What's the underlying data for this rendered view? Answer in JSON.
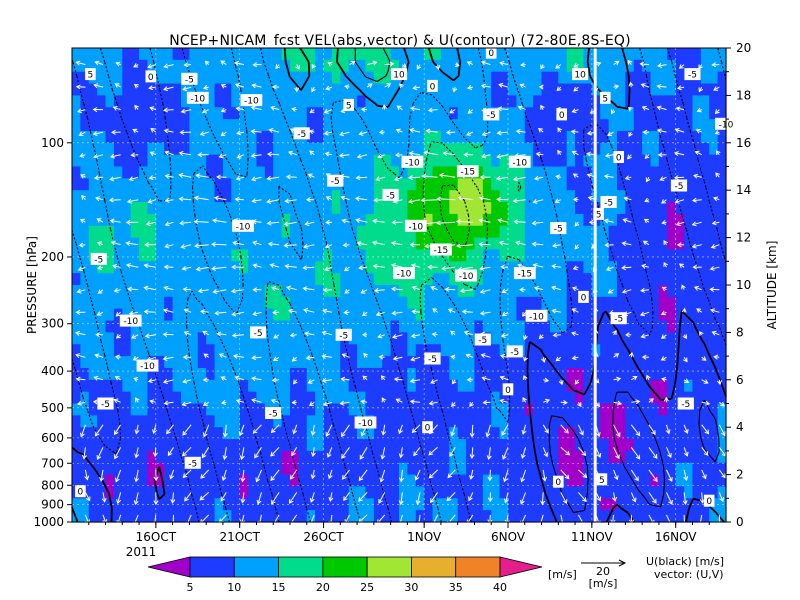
{
  "chart_data": {
    "type": "heatmap",
    "title": "NCEP+NICAM_fcst VEL(abs,vector) & U(contour)   (72-80E,8S-EQ)",
    "ylabel_left": "PRESSURE [hPa]",
    "ylabel_right": "ALTITUDE [km]",
    "pressure_ticks": [
      "100",
      "200",
      "300",
      "400",
      "500",
      "600",
      "700",
      "800",
      "900",
      "1000"
    ],
    "pressure_values": [
      100,
      200,
      300,
      400,
      500,
      600,
      700,
      800,
      900,
      1000
    ],
    "altitude_ticks": [
      "0",
      "2",
      "4",
      "6",
      "8",
      "10",
      "12",
      "14",
      "16",
      "18",
      "20"
    ],
    "altitude_values": [
      0,
      2,
      4,
      6,
      8,
      10,
      12,
      14,
      16,
      18,
      20
    ],
    "date_ticks": [
      "16OCT",
      "21OCT",
      "26OCT",
      "1NOV",
      "6NOV",
      "11NOV",
      "16NOV"
    ],
    "date_positions_days": [
      5,
      10,
      15,
      21,
      26,
      31,
      36
    ],
    "year_label": "2011",
    "time_range_days": [
      0,
      39
    ],
    "forecast_start_label": "2011-11-11",
    "colorbar": {
      "levels": [
        "5",
        "10",
        "15",
        "20",
        "25",
        "30",
        "35",
        "40"
      ],
      "colors": [
        "#a100c8",
        "#1e3cff",
        "#00a0ff",
        "#00dc8c",
        "#00c800",
        "#a0e632",
        "#e6af2d",
        "#f08228",
        "#e61e8c"
      ],
      "unit": "[m/s]"
    },
    "vector_ref": {
      "value": "20",
      "unit": "[m/s]"
    },
    "legend_lines": [
      "U(black) [m/s]",
      "vector: (U,V)"
    ],
    "contour_labels": [
      {
        "text": "5",
        "day": 16.5,
        "km": 17.6
      },
      {
        "text": "10",
        "day": 19.5,
        "km": 18.9
      },
      {
        "text": "0",
        "day": 25.0,
        "km": 19.8
      },
      {
        "text": "5",
        "day": 1.1,
        "km": 18.9
      },
      {
        "text": "0",
        "day": 4.7,
        "km": 18.8
      },
      {
        "text": "-5",
        "day": 7.0,
        "km": 18.7
      },
      {
        "text": "-10",
        "day": 7.5,
        "km": 17.9
      },
      {
        "text": "-10",
        "day": 10.7,
        "km": 17.8
      },
      {
        "text": "-5",
        "day": 13.7,
        "km": 16.4
      },
      {
        "text": "0",
        "day": 21.5,
        "km": 18.4
      },
      {
        "text": "-5",
        "day": 25.0,
        "km": 17.2
      },
      {
        "text": "10",
        "day": 30.3,
        "km": 18.9
      },
      {
        "text": "5",
        "day": 31.8,
        "km": 17.9
      },
      {
        "text": "0",
        "day": 29.2,
        "km": 17.2
      },
      {
        "text": "0",
        "day": 32.6,
        "km": 15.4
      },
      {
        "text": "-5",
        "day": 37.0,
        "km": 18.9
      },
      {
        "text": "-10",
        "day": 39.0,
        "km": 16.8
      },
      {
        "text": "-10",
        "day": 20.3,
        "km": 15.2
      },
      {
        "text": "-15",
        "day": 23.6,
        "km": 14.8
      },
      {
        "text": "-10",
        "day": 26.7,
        "km": 15.2
      },
      {
        "text": "-5",
        "day": 15.7,
        "km": 14.4
      },
      {
        "text": "-5",
        "day": 19.0,
        "km": 13.8
      },
      {
        "text": "-5",
        "day": 32.0,
        "km": 13.5
      },
      {
        "text": "-5",
        "day": 36.2,
        "km": 14.2
      },
      {
        "text": "5",
        "day": 31.4,
        "km": 13.0
      },
      {
        "text": "-10",
        "day": 20.5,
        "km": 12.5
      },
      {
        "text": "-10",
        "day": 10.2,
        "km": 12.5
      },
      {
        "text": "-15",
        "day": 22.0,
        "km": 11.5
      },
      {
        "text": "-5",
        "day": 29.0,
        "km": 12.4
      },
      {
        "text": "-5",
        "day": 1.6,
        "km": 11.1
      },
      {
        "text": "-10",
        "day": 19.8,
        "km": 10.5
      },
      {
        "text": "-10",
        "day": 23.5,
        "km": 10.4
      },
      {
        "text": "-15",
        "day": 27.0,
        "km": 10.5
      },
      {
        "text": "0",
        "day": 30.5,
        "km": 9.5
      },
      {
        "text": "-10",
        "day": 27.7,
        "km": 8.7
      },
      {
        "text": "-10",
        "day": 3.5,
        "km": 8.5
      },
      {
        "text": "-5",
        "day": 11.1,
        "km": 8.0
      },
      {
        "text": "-5",
        "day": 16.2,
        "km": 7.9
      },
      {
        "text": "-5",
        "day": 32.6,
        "km": 8.6
      },
      {
        "text": "-5",
        "day": 24.5,
        "km": 7.7
      },
      {
        "text": "-5",
        "day": 26.4,
        "km": 7.2
      },
      {
        "text": "-5",
        "day": 21.5,
        "km": 6.9
      },
      {
        "text": "-10",
        "day": 4.5,
        "km": 6.6
      },
      {
        "text": "0",
        "day": 26.0,
        "km": 5.6
      },
      {
        "text": "-5",
        "day": 2.0,
        "km": 5.0
      },
      {
        "text": "-5",
        "day": 36.6,
        "km": 5.0
      },
      {
        "text": "-5",
        "day": 12.0,
        "km": 4.6
      },
      {
        "text": "-10",
        "day": 17.5,
        "km": 4.2
      },
      {
        "text": "0",
        "day": 21.2,
        "km": 4.0
      },
      {
        "text": "-5",
        "day": 7.2,
        "km": 2.5
      },
      {
        "text": "0",
        "day": 0.5,
        "km": 1.3
      },
      {
        "text": "0",
        "day": 29.0,
        "km": 1.7
      },
      {
        "text": "5",
        "day": 31.6,
        "km": 1.8
      },
      {
        "text": "0",
        "day": 38.0,
        "km": 0.9
      }
    ]
  }
}
